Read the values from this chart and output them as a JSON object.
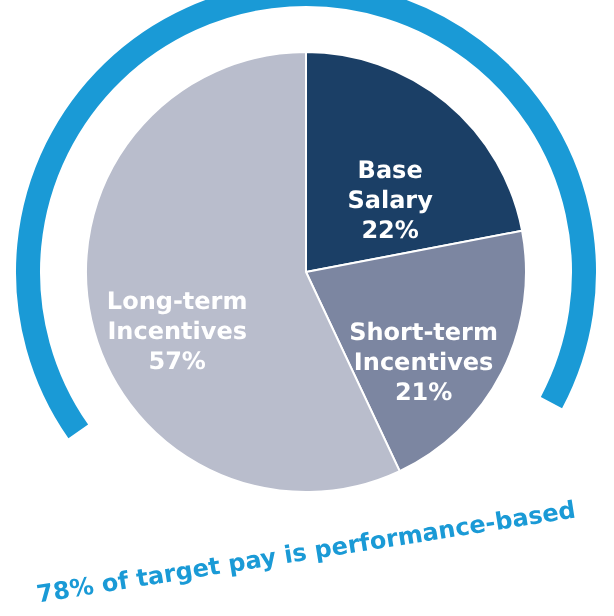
{
  "chart_data": {
    "type": "pie",
    "categories": [
      "Base Salary",
      "Short-term Incentives",
      "Long-term Incentives"
    ],
    "values": [
      22,
      21,
      57
    ],
    "value_labels": [
      "22%",
      "21%",
      "57%"
    ],
    "colors": [
      "#1b3f66",
      "#7c86a1",
      "#b9bdcc"
    ],
    "annotations": [
      "78% of target pay is performance-based"
    ]
  }
}
